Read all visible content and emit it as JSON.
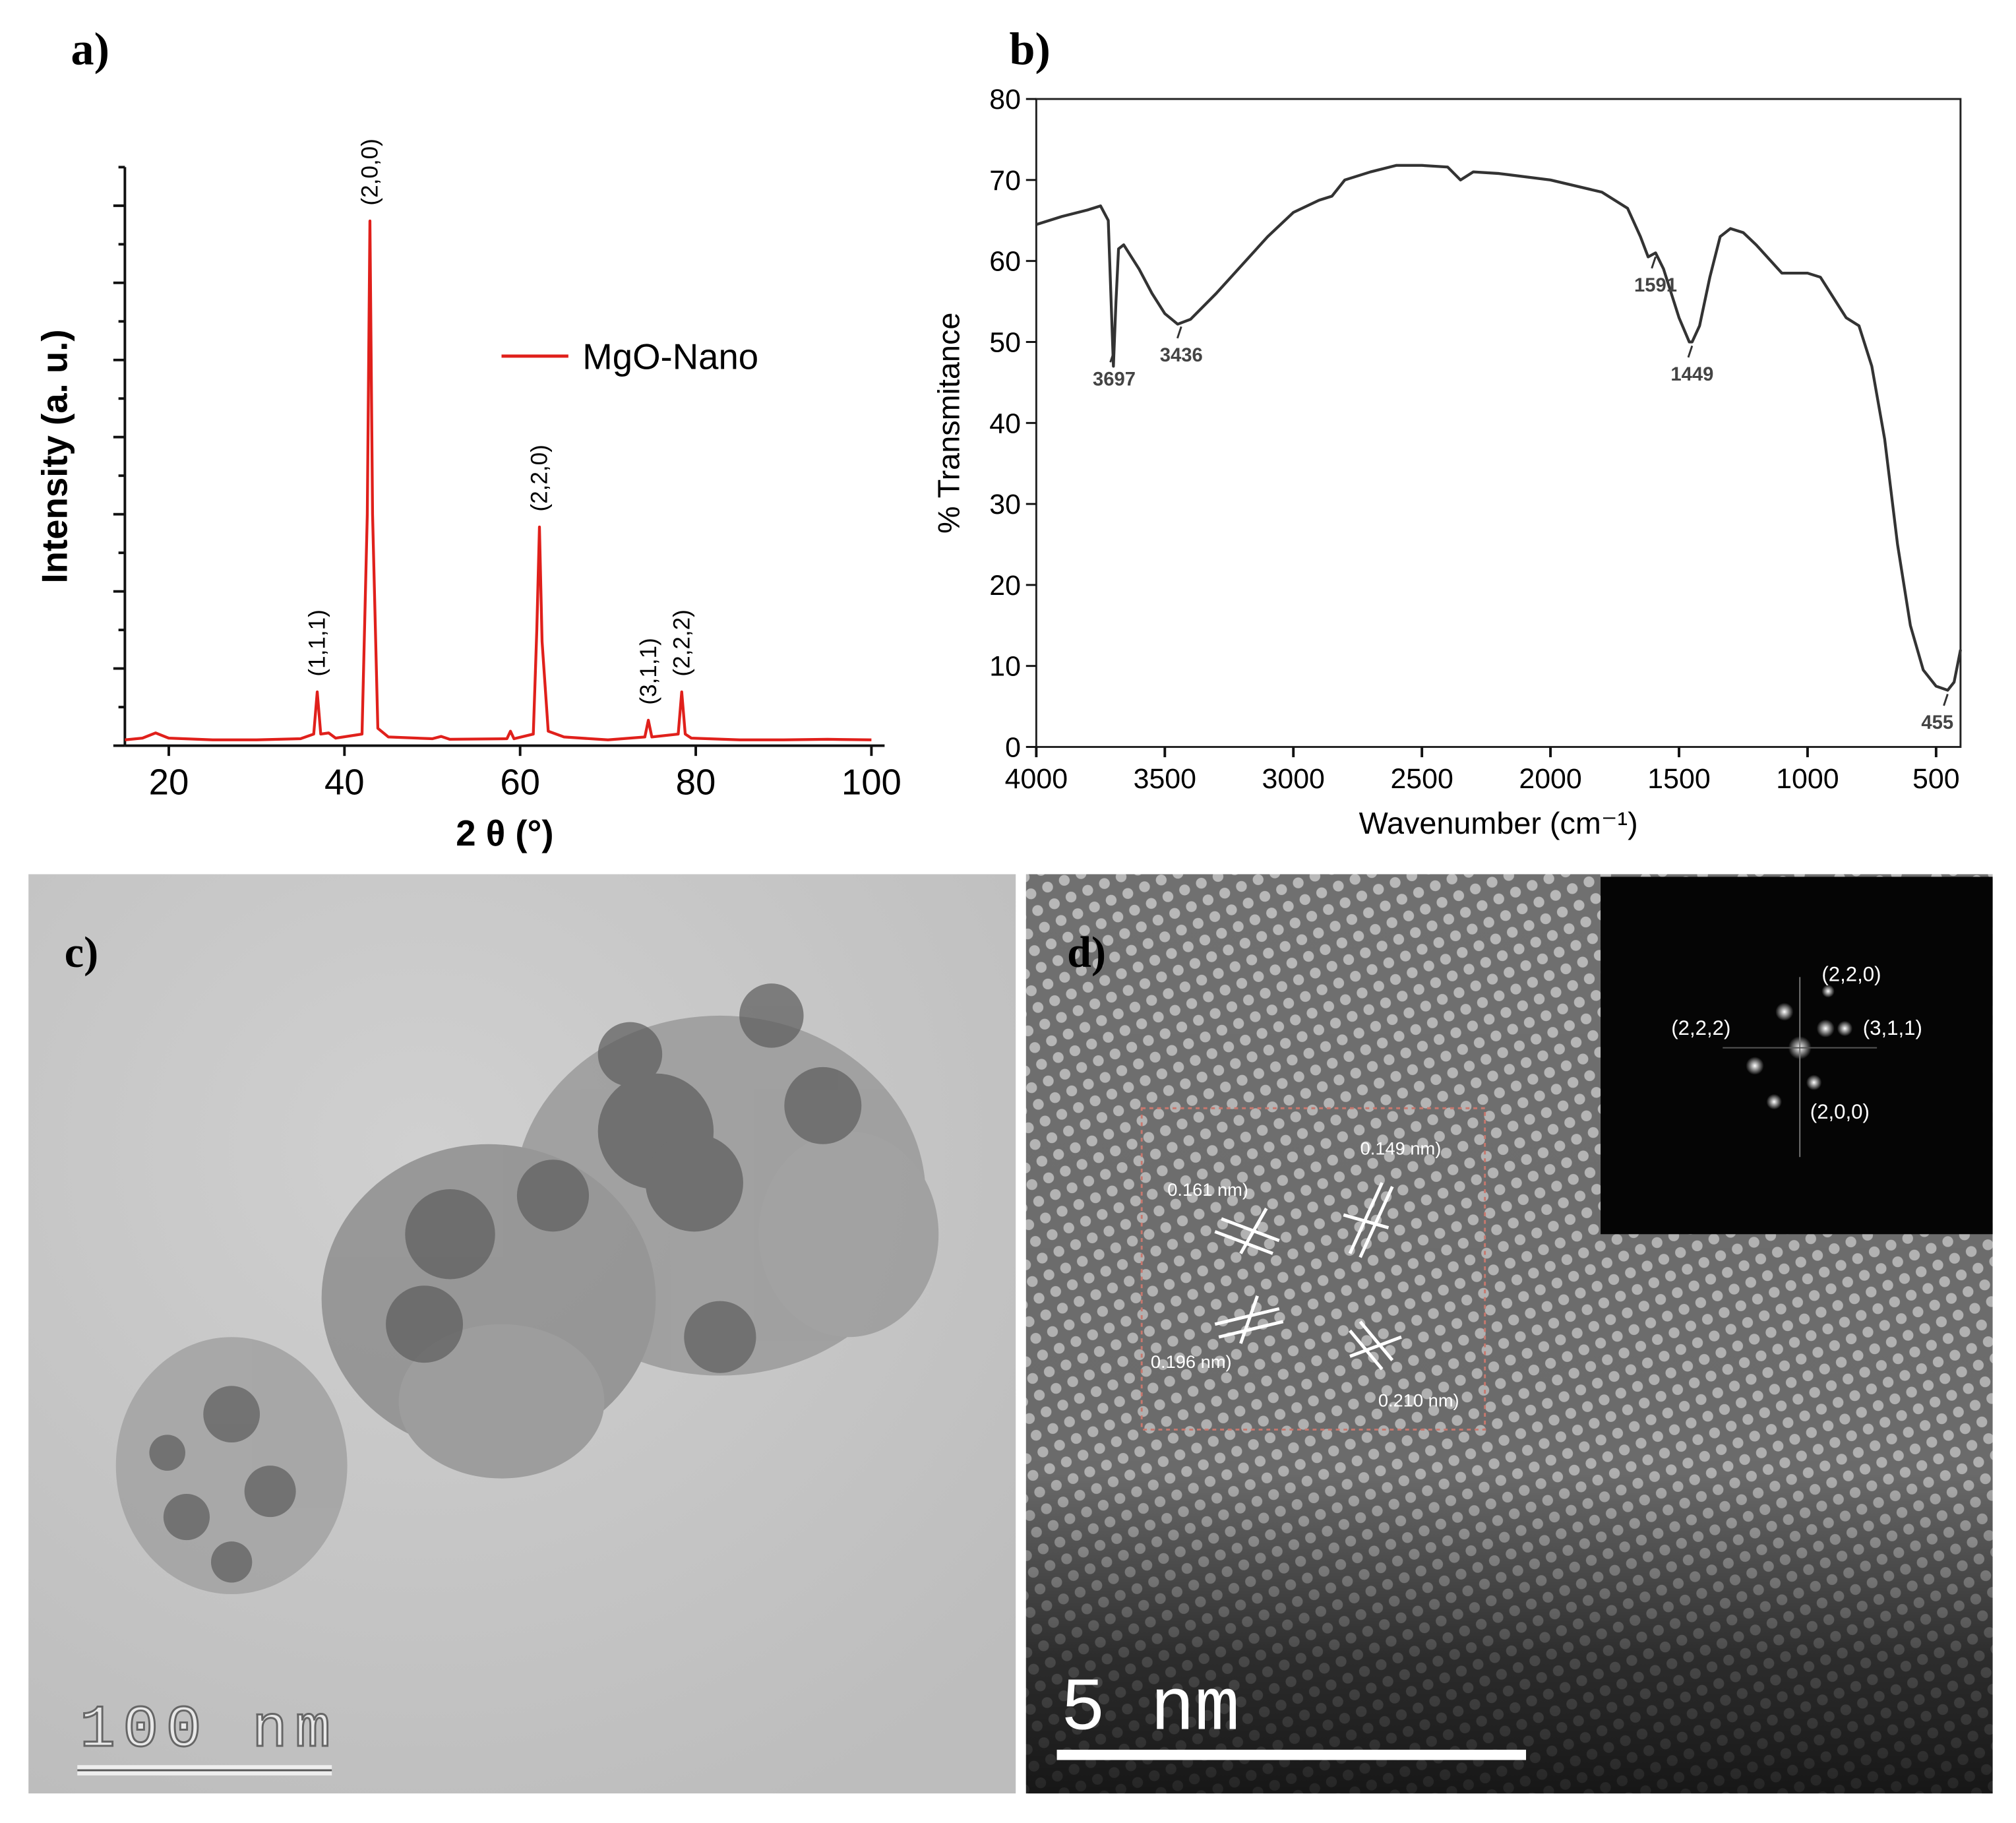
{
  "chart_data": [
    {
      "type": "line",
      "panel_label": "a)",
      "xlabel": "2 θ (°)",
      "ylabel": "Intensity (a. u.)",
      "x": [
        15,
        17,
        18.5,
        20,
        25,
        30,
        35,
        36.5,
        36.9,
        37.3,
        38.2,
        39,
        42,
        42.6,
        42.9,
        43.2,
        43.8,
        45,
        50,
        51,
        52,
        58.5,
        58.9,
        59.3,
        61.5,
        61.9,
        62.2,
        62.5,
        63.2,
        65,
        70,
        74.2,
        74.6,
        75,
        78,
        78.4,
        78.8,
        79.5,
        85,
        90,
        95,
        100
      ],
      "series": [
        {
          "name": "MgO-Nano",
          "color": "#e0201b",
          "values": [
            1.0,
            1.3,
            2.2,
            1.3,
            1.0,
            1.0,
            1.2,
            2.0,
            9.3,
            2.0,
            2.2,
            1.3,
            2.0,
            40,
            90.7,
            40,
            3.0,
            1.5,
            1.2,
            1.6,
            1.1,
            1.2,
            2.5,
            1.2,
            2.0,
            20,
            37.8,
            18,
            2.5,
            1.5,
            1.0,
            1.5,
            4.4,
            1.5,
            2.0,
            9.3,
            2.0,
            1.3,
            1.0,
            1.0,
            1.1,
            1.0
          ]
        }
      ],
      "xlim": [
        15,
        101.5
      ],
      "xticks": [
        20,
        40,
        60,
        80,
        100
      ],
      "ylim": [
        0,
        100
      ],
      "peak_labels": [
        {
          "text": "(1,1,1)",
          "x": 36.9
        },
        {
          "text": "(2,0,0)",
          "x": 42.9
        },
        {
          "text": "(2,2,0)",
          "x": 62.2
        },
        {
          "text": "(3,1,1)",
          "x": 74.6
        },
        {
          "text": "(2,2,2)",
          "x": 78.4
        }
      ]
    },
    {
      "type": "line",
      "panel_label": "b)",
      "xlabel": "Wavenumber (cm⁻¹)",
      "ylabel": "% Transmitance",
      "color": "#333333",
      "x": [
        4000,
        3900,
        3800,
        3750,
        3720,
        3700,
        3690,
        3680,
        3660,
        3600,
        3550,
        3500,
        3450,
        3400,
        3300,
        3200,
        3100,
        3000,
        2900,
        2850,
        2800,
        2700,
        2600,
        2500,
        2400,
        2350,
        2300,
        2200,
        2000,
        1800,
        1700,
        1650,
        1620,
        1591,
        1560,
        1500,
        1460,
        1449,
        1420,
        1380,
        1340,
        1300,
        1250,
        1200,
        1100,
        1000,
        950,
        900,
        850,
        800,
        750,
        700,
        650,
        600,
        550,
        500,
        455,
        430,
        405
      ],
      "values": [
        64.5,
        65.5,
        66.3,
        66.8,
        65,
        47,
        55,
        61.5,
        62,
        59,
        56,
        53.5,
        52.2,
        52.8,
        56,
        59.5,
        63,
        66,
        67.5,
        68,
        70,
        71,
        71.8,
        71.8,
        71.6,
        70,
        71,
        70.8,
        70,
        68.5,
        66.5,
        63,
        60.5,
        61,
        59,
        53,
        50,
        50,
        52,
        58,
        63,
        64,
        63.5,
        62,
        58.5,
        58.5,
        58,
        55.5,
        53,
        52,
        47,
        38,
        25,
        15,
        9.5,
        7.5,
        7,
        8,
        12
      ],
      "xlim": [
        4000,
        405
      ],
      "xticks": [
        4000,
        3500,
        3000,
        2500,
        2000,
        1500,
        1000,
        500
      ],
      "ylim": [
        0,
        80
      ],
      "yticks": [
        0,
        10,
        20,
        30,
        40,
        50,
        60,
        70,
        80
      ],
      "peak_labels": [
        3697,
        3436,
        1591,
        1449,
        455
      ]
    }
  ],
  "images": [
    {
      "panel_label": "c)",
      "scale_bar": "100 nm"
    },
    {
      "panel_label": "d)",
      "scale_bar": "5 nm",
      "spacings": [
        "0.161 nm)",
        "0.149 nm)",
        "0.196 nm)",
        "0.210 nm)"
      ],
      "fft_spots": [
        "(2,2,0)",
        "(2,2,2)",
        "(3,1,1)",
        "(2,0,0)"
      ]
    }
  ]
}
